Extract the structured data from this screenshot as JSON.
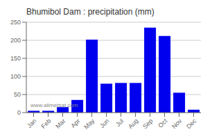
{
  "chart_data": {
    "type": "bar",
    "title": "Bhumibol Dam : precipitation (mm)",
    "categories": [
      "Jan",
      "Feb",
      "Mar",
      "Apr",
      "May",
      "Jun",
      "Jul",
      "Aug",
      "Sep",
      "Oct",
      "Nov",
      "Dec"
    ],
    "values": [
      5,
      5,
      15,
      35,
      202,
      80,
      82,
      82,
      235,
      212,
      55,
      8
    ],
    "color": "#0000ee",
    "ylim": [
      0,
      250
    ],
    "yticks": [
      0,
      50,
      100,
      150,
      200,
      250
    ],
    "grid": true,
    "annotations": [
      "www.allmetsat.com"
    ]
  }
}
